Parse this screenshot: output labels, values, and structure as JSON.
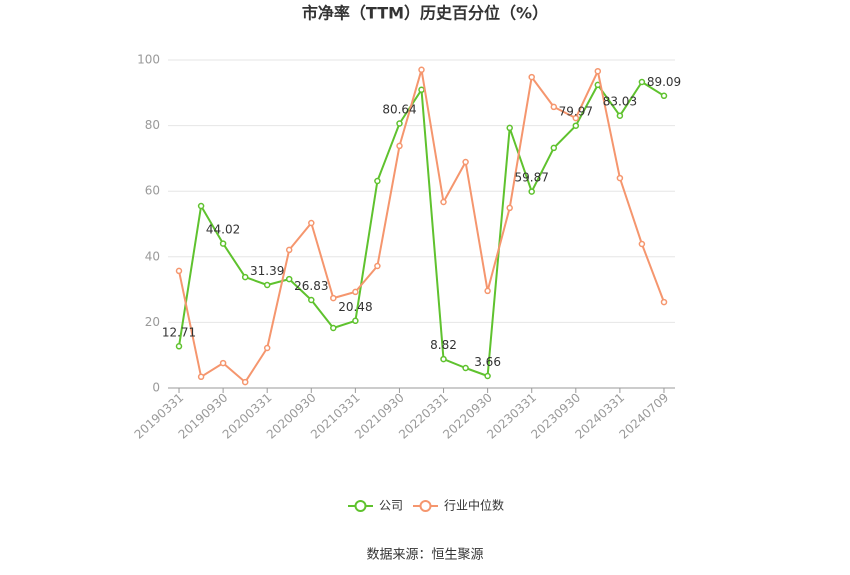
{
  "chart_data": {
    "type": "line",
    "title": "市净率（TTM）历史百分位（%）",
    "categories": [
      "20190331",
      "",
      "20190930",
      "",
      "20200331",
      "",
      "20200930",
      "",
      "20210331",
      "",
      "20210930",
      "",
      "20220331",
      "",
      "20220930",
      "",
      "20230331",
      "",
      "20230930",
      "",
      "20240331",
      "",
      "20240709"
    ],
    "ylim": [
      0,
      100
    ],
    "y_ticks": [
      0,
      20,
      40,
      60,
      80,
      100
    ],
    "grid": true,
    "legend": "bottom",
    "series": [
      {
        "name": "公司",
        "color": "#5fc22e",
        "values": [
          12.71,
          55.5,
          44.02,
          33.8,
          31.39,
          33.2,
          26.83,
          18.3,
          20.48,
          63.1,
          80.64,
          90.9,
          8.82,
          6.1,
          3.66,
          79.3,
          59.87,
          73.2,
          79.97,
          92.4,
          83.03,
          93.3,
          89.09
        ],
        "data_labels": [
          "12.71",
          "",
          "44.02",
          "",
          "31.39",
          "",
          "26.83",
          "",
          "20.48",
          "",
          "80.64",
          "",
          "8.82",
          "",
          "3.66",
          "",
          "59.87",
          "",
          "79.97",
          "",
          "83.03",
          "",
          "89.09"
        ]
      },
      {
        "name": "行业中位数",
        "color": "#f5966e",
        "values": [
          35.7,
          3.4,
          7.6,
          1.8,
          12.2,
          42.1,
          50.3,
          27.4,
          29.3,
          37.2,
          73.8,
          97.0,
          56.7,
          68.9,
          29.6,
          54.9,
          94.8,
          85.7,
          82.3,
          96.6,
          64.0,
          43.9,
          26.2
        ]
      }
    ]
  },
  "source": "数据来源：恒生聚源"
}
